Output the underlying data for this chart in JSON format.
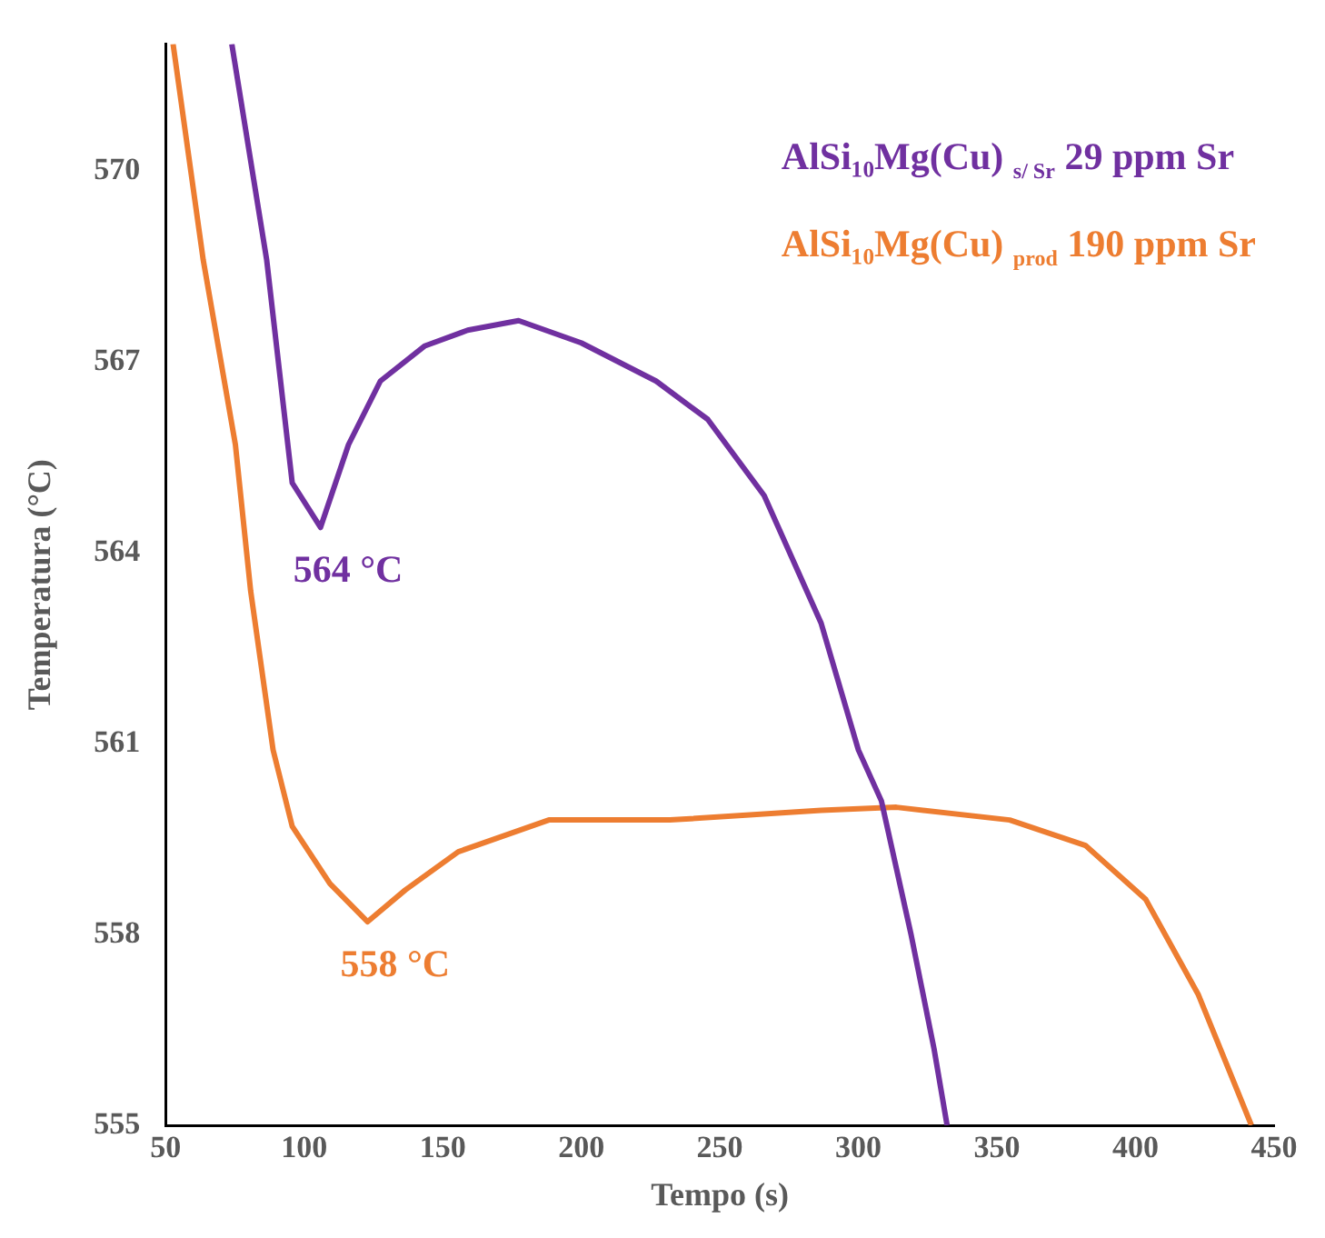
{
  "chart_data": {
    "type": "line",
    "xlabel": "Tempo (s)",
    "ylabel": "Temperatura (°C)",
    "xlim": [
      50,
      450
    ],
    "xticks": [
      50,
      100,
      150,
      200,
      250,
      300,
      350,
      400,
      450
    ],
    "ylim": [
      555,
      572
    ],
    "yticks": [
      555,
      558,
      561,
      564,
      567,
      570
    ],
    "grid": false,
    "legend": "top right",
    "marker": "none",
    "line_style": "solid",
    "series": [
      {
        "name": "AlSi₁₀Mg(Cu) $_{s/ Sr}$  29 ppm Sr",
        "color": "#7030a0",
        "x": [
          73.9,
          86.5,
          95.7,
          105.9,
          116,
          127.5,
          143.4,
          159,
          177.4,
          200,
          227,
          245.6,
          266,
          286.5,
          300,
          308.3,
          319,
          327.3,
          332
        ],
        "values": [
          572,
          568.6,
          565.1,
          564.4,
          565.7,
          566.7,
          567.25,
          567.5,
          567.65,
          567.3,
          566.7,
          566.1,
          564.9,
          562.9,
          560.9,
          560.1,
          558,
          556.2,
          555
        ]
      },
      {
        "name": "AlSi₁₀Mg(Cu) $_{prod}$ 190 ppm Sr",
        "color": "#ed7d31",
        "x": [
          52.7,
          63.6,
          75.2,
          80.7,
          88.8,
          95.7,
          109.3,
          122.9,
          136.5,
          155.6,
          188.3,
          232,
          286.5,
          313.7,
          354.6,
          381.9,
          403.7,
          422.7,
          441.8
        ],
        "values": [
          572,
          568.6,
          565.7,
          563.4,
          560.9,
          559.7,
          558.8,
          558.2,
          558.7,
          559.3,
          559.8,
          559.8,
          559.95,
          560,
          559.8,
          559.4,
          558.55,
          557.05,
          555
        ]
      }
    ],
    "annotations": [
      {
        "text": "564 °C",
        "x": 105.9,
        "y": 564.4
      },
      {
        "text": "558 °C",
        "x": 122.9,
        "y": 558.2
      }
    ]
  }
}
